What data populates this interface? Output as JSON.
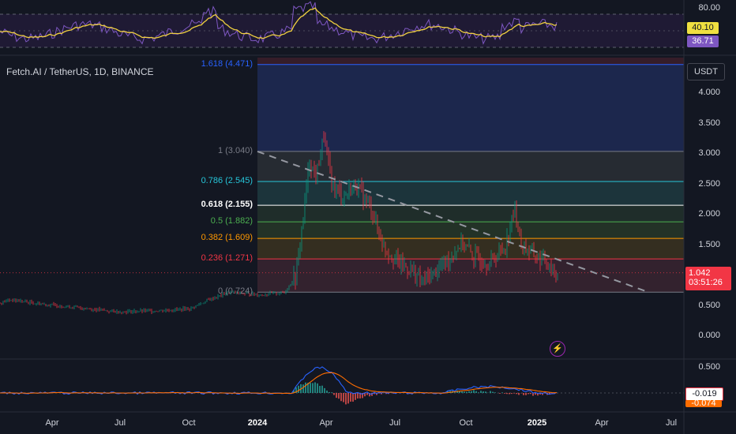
{
  "symbol": {
    "title": "Fetch.AI / TetherUS, 1D, BINANCE",
    "currency_label": "USDT",
    "last_price": "1.042",
    "countdown": "03:51:26"
  },
  "rsi_panel": {
    "scale_top": "80.00",
    "value_sma": "40.10",
    "value_rsi": "36.71",
    "colors": {
      "sma_line": "#f0d040",
      "rsi_line": "#7e57c2",
      "band": "#2a1e44"
    }
  },
  "price_axis": {
    "labels": [
      "4.000",
      "3.500",
      "3.000",
      "2.500",
      "2.000",
      "1.500",
      "0.500",
      "0.000"
    ]
  },
  "fib_levels": [
    {
      "label": "1.618 (4.471)",
      "value": 4.471,
      "color": "#2962ff",
      "fill": "#1d2d5c"
    },
    {
      "label": "1 (3.040)",
      "value": 3.04,
      "color": "#787b86",
      "fill": "#1e2a55"
    },
    {
      "label": "0.786 (2.545)",
      "value": 2.545,
      "color": "#26c6da",
      "fill": "#2a2f35"
    },
    {
      "label": "0.618 (2.155)",
      "value": 2.155,
      "color": "#ffffff",
      "fill": "#1f3a40"
    },
    {
      "label": "0.5 (1.882)",
      "value": 1.882,
      "color": "#4caf50",
      "fill": "#22312b"
    },
    {
      "label": "0.382 (1.609)",
      "value": 1.609,
      "color": "#ff9800",
      "fill": "#273728"
    },
    {
      "label": "0.236 (1.271)",
      "value": 1.271,
      "color": "#f23645",
      "fill": "#3b3220"
    },
    {
      "label": "0 (0.724)",
      "value": 0.724,
      "color": "#787b86",
      "fill": "#3a2430"
    }
  ],
  "macd_panel": {
    "scale_top": "0.500",
    "value_macd": "-0.019",
    "value_signal": "-0.074",
    "colors": {
      "macd": "#2962ff",
      "signal": "#ff6d00"
    }
  },
  "time_axis": {
    "labels": [
      "Apr",
      "Jul",
      "Oct",
      "2024",
      "Apr",
      "Jul",
      "Oct",
      "2025",
      "Apr",
      "Jul"
    ]
  },
  "icons": {
    "alert": "lightning-icon"
  },
  "colors": {
    "background": "#131722",
    "up": "#089981",
    "down": "#f23645",
    "trendline": "#9598a1"
  }
}
